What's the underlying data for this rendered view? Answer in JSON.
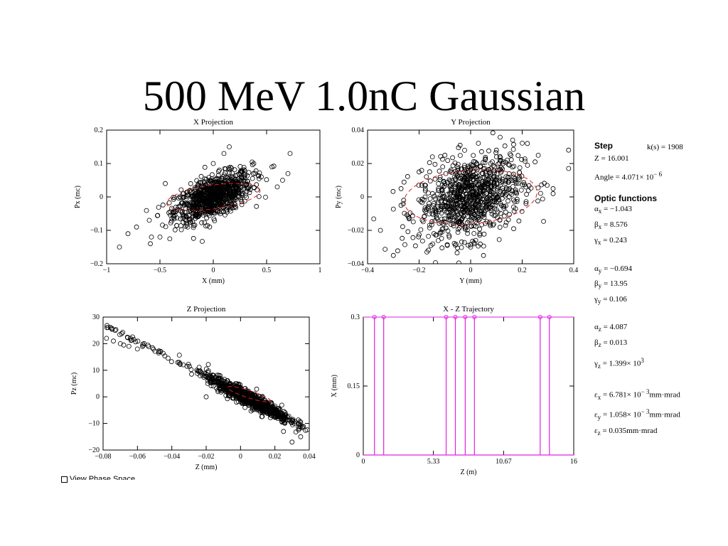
{
  "slide_title": "500 MeV 1.0nC Gaussian",
  "chart_data": [
    {
      "type": "scatter",
      "title": "X Projection",
      "xlabel": "X (mm)",
      "ylabel": "Px (mc)",
      "xlim": [
        -1,
        1
      ],
      "ylim": [
        -0.2,
        0.2
      ],
      "xticks": [
        "-1",
        "-0.5",
        "0",
        "0.5",
        "1"
      ],
      "yticks": [
        "-0.2",
        "-0.1",
        "0",
        "0.1",
        "0.2"
      ],
      "cloud": {
        "count": 900,
        "x_sd": 0.18,
        "slope": 0.12,
        "spread": 0.03
      },
      "points": [
        [
          -0.88,
          -0.15
        ],
        [
          -0.8,
          -0.11
        ],
        [
          -0.72,
          -0.09
        ],
        [
          -0.6,
          -0.07
        ],
        [
          -0.58,
          -0.12
        ],
        [
          -0.59,
          -0.14
        ],
        [
          -0.45,
          0.04
        ],
        [
          0.15,
          0.15
        ],
        [
          0.1,
          0.13
        ],
        [
          0.72,
          0.13
        ],
        [
          0.55,
          0.09
        ],
        [
          0.7,
          0.07
        ],
        [
          0.65,
          0.05
        ],
        [
          0.6,
          0.03
        ],
        [
          -0.5,
          -0.12
        ],
        [
          0.38,
          0.1
        ],
        [
          0.45,
          0.06
        ],
        [
          0.0,
          0.1
        ]
      ],
      "ellipse": {
        "rx": 0.45,
        "ry": 0.035,
        "angle_deg": 14
      }
    },
    {
      "type": "scatter",
      "title": "Y Projection",
      "xlabel": "Y (mm)",
      "ylabel": "Py (mc)",
      "xlim": [
        -0.4,
        0.4
      ],
      "ylim": [
        -0.04,
        0.04
      ],
      "xticks": [
        "-0.4",
        "-0.2",
        "0",
        "0.2",
        "0.4"
      ],
      "yticks": [
        "-0.04",
        "-0.02",
        "0",
        "0.02",
        "0.04"
      ],
      "cloud": {
        "count": 900,
        "x_sd": 0.1,
        "slope": 0.04,
        "spread": 0.012
      },
      "points": [
        [
          -0.35,
          -0.02
        ],
        [
          -0.3,
          -0.035
        ],
        [
          -0.27,
          -0.005
        ],
        [
          -0.26,
          -0.002
        ],
        [
          -0.2,
          0.015
        ],
        [
          -0.27,
          0.005
        ],
        [
          0.38,
          0.028
        ],
        [
          0.38,
          0.017
        ],
        [
          0.32,
          0.005
        ],
        [
          0.32,
          0.002
        ],
        [
          0.22,
          0.032
        ],
        [
          0.1,
          0.028
        ],
        [
          0.05,
          -0.035
        ],
        [
          -0.1,
          0.025
        ],
        [
          0.0,
          -0.03
        ],
        [
          0.15,
          0.01
        ],
        [
          0.25,
          0.021
        ]
      ],
      "ellipse": {
        "rx": 0.26,
        "ry": 0.016,
        "angle_deg": 10
      }
    },
    {
      "type": "scatter",
      "title": "Z Projection",
      "xlabel": "Z (mm)",
      "ylabel": "Pz (mc)",
      "xlim": [
        -0.08,
        0.04
      ],
      "ylim": [
        -20,
        30
      ],
      "xticks": [
        "-0.08",
        "-0.06",
        "-0.04",
        "-0.02",
        "0",
        "0.02",
        "0.04"
      ],
      "yticks": [
        "-20",
        "-10",
        "0",
        "10",
        "20",
        "30"
      ],
      "cloud": {
        "count": 900,
        "x_mean": 0.005,
        "x_sd": 0.012,
        "slope": -330,
        "intercept": 1,
        "spread": 1.4
      },
      "tail": {
        "x_from": -0.078,
        "x_to": -0.015,
        "count": 60
      },
      "points": [
        [
          -0.078,
          22
        ],
        [
          -0.074,
          21
        ],
        [
          -0.07,
          20
        ],
        [
          -0.068,
          19.5
        ],
        [
          -0.065,
          19
        ],
        [
          -0.06,
          18
        ],
        [
          -0.02,
          0
        ],
        [
          0.035,
          -15
        ],
        [
          0.03,
          -17
        ],
        [
          0.025,
          -13
        ]
      ],
      "ellipse": {
        "rx": 0.014,
        "ry": 1.3,
        "angle_deg": -27
      }
    },
    {
      "type": "line",
      "title": "X - Z Trajectory",
      "xlabel": "Z (m)",
      "ylabel": "X (mm)",
      "xlim": [
        0,
        16
      ],
      "ylim": [
        0,
        0.3
      ],
      "xticks": [
        "0",
        "5.33",
        "10.67",
        "16"
      ],
      "yticks": [
        "0",
        "0.15",
        "0.3"
      ],
      "impulse_x": [
        0.85,
        1.55,
        6.3,
        7.0,
        7.75,
        8.45,
        13.45,
        14.15
      ]
    }
  ],
  "side": {
    "step_label": "Step",
    "k_text": "k(s)  =  1908",
    "z_text": "Z = 16.001",
    "angle_text": "Angle  = 4.071×  10",
    "angle_exp": "− 6",
    "optic_label": "Optic functions",
    "alpha": "α",
    "beta": "β",
    "gamma": "γ",
    "eps": "ε",
    "sub_x": "x",
    "sub_y": "y",
    "sub_z": "z",
    "ax": " = −1.043",
    "bx": " = 8.576",
    "gx": " = 0.243",
    "ay": " = −0.694",
    "by": " = 13.95",
    "gy": " = 0.106",
    "az": " = 4.087",
    "bz": " = 0.013",
    "gz_pre": " = 1.399×  10",
    "gz_exp": "3",
    "ex_pre": " = 6.781×  10",
    "ex_exp": "− 3",
    "ex_unit": "mm·mrad",
    "ey_pre": " = 1.058×  10",
    "ey_exp": "− 3",
    "ey_unit": "mm·mrad",
    "ez": " = 0.035mm·mrad"
  },
  "checkbox_label": "View Phase Space",
  "colors": {
    "trajectory": "#e020e0",
    "ellipse": "#e02020",
    "ink": "#000000"
  }
}
